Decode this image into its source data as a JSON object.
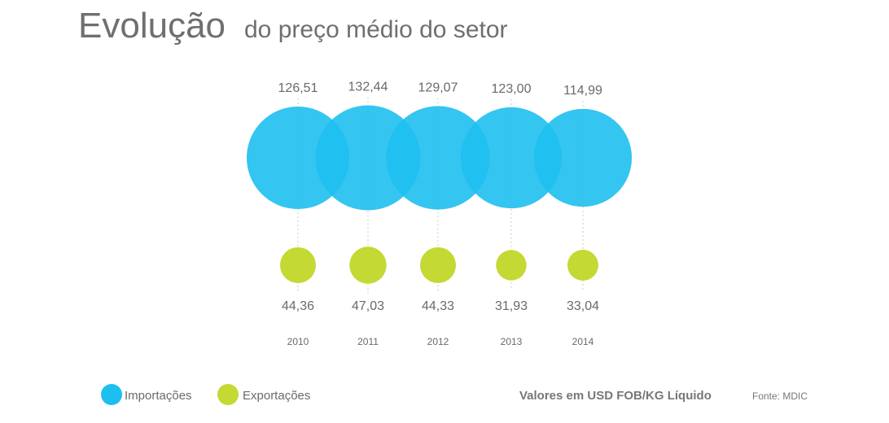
{
  "title_main": "Evolução",
  "title_sub": "do preço médio do setor",
  "note": "Valores em USD FOB/KG Líquido",
  "source": "Fonte: MDIC",
  "colors": {
    "imports": "#1ebfef",
    "exports": "#c4d933"
  },
  "chart_data": {
    "type": "bubble",
    "title": "Evolução do preço médio do setor",
    "categories": [
      "2010",
      "2011",
      "2012",
      "2013",
      "2014"
    ],
    "series": [
      {
        "name": "Importações",
        "values": [
          126.51,
          132.44,
          129.07,
          123.0,
          114.99
        ],
        "labels": [
          "126,51",
          "132,44",
          "129,07",
          "123,00",
          "114,99"
        ]
      },
      {
        "name": "Exportações",
        "values": [
          44.36,
          47.03,
          44.33,
          31.93,
          33.04
        ],
        "labels": [
          "44,36",
          "47,03",
          "44,33",
          "31,93",
          "33,04"
        ]
      }
    ],
    "unit": "USD FOB/KG Líquido",
    "legend": "bottom-left"
  }
}
